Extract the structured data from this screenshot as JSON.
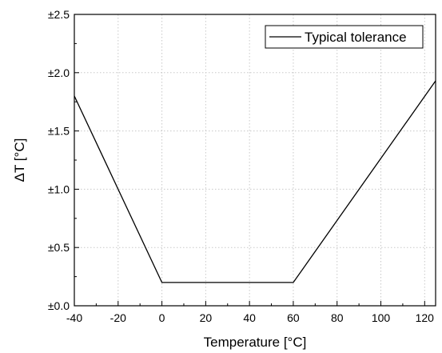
{
  "chart_data": {
    "type": "line",
    "title": "",
    "xlabel": "Temperature [°C]",
    "ylabel": "ΔT [°C]",
    "xlim": [
      -40,
      125
    ],
    "ylim": [
      0,
      2.5
    ],
    "x_ticks": [
      -40,
      -20,
      0,
      20,
      40,
      60,
      80,
      100,
      120
    ],
    "x_tick_labels": [
      "-40",
      "-20",
      "0",
      "20",
      "40",
      "60",
      "80",
      "100",
      "120"
    ],
    "y_ticks": [
      0,
      0.5,
      1.0,
      1.5,
      2.0,
      2.5
    ],
    "y_tick_labels": [
      "±0.0",
      "±0.5",
      "±1.0",
      "±1.5",
      "±2.0",
      "±2.5"
    ],
    "grid": true,
    "legend_position": "top-right",
    "series": [
      {
        "name": "Typical tolerance",
        "x": [
          -40,
          0,
          60,
          125
        ],
        "y": [
          1.8,
          0.2,
          0.2,
          1.93
        ]
      }
    ],
    "colors": {
      "line": "#000000",
      "grid": "#c8c8c8",
      "axes": "#000000"
    }
  }
}
